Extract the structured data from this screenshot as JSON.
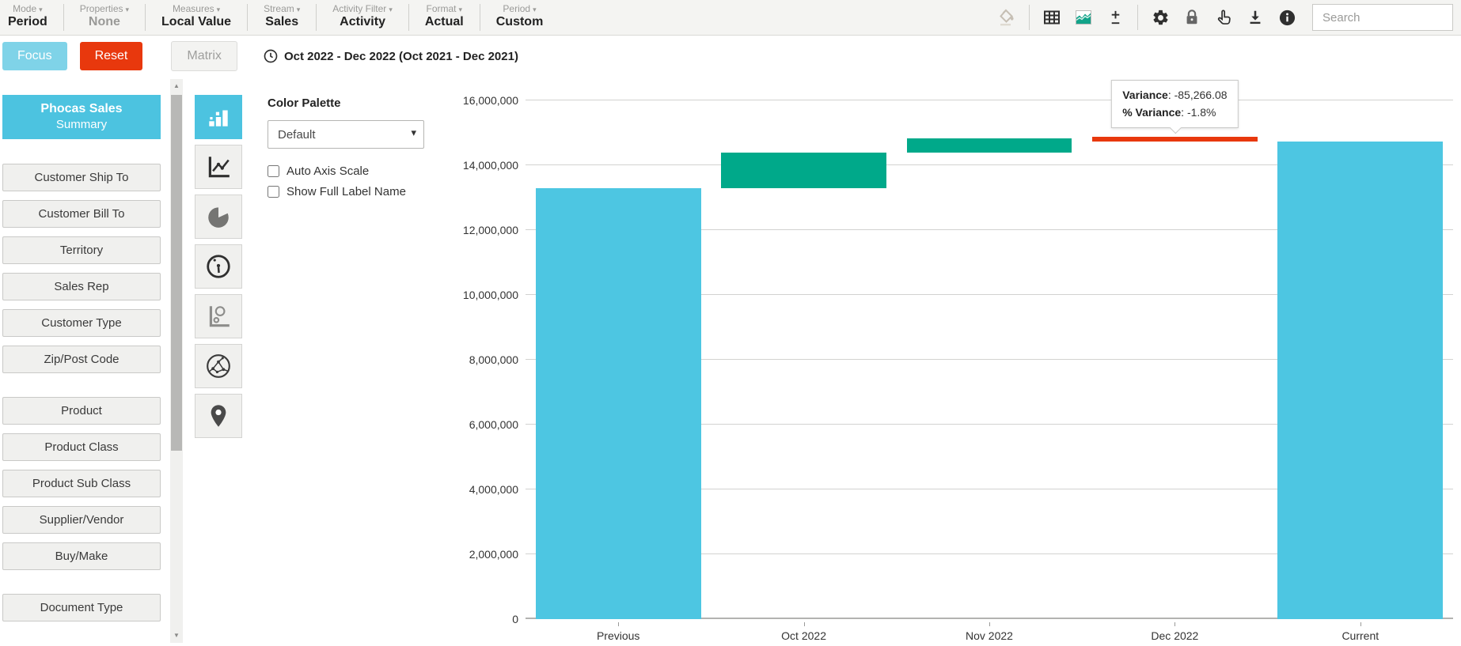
{
  "toolbar": {
    "menus": [
      {
        "label": "Mode",
        "value": "Period",
        "disabled": false
      },
      {
        "label": "Properties",
        "value": "None",
        "disabled": true
      },
      {
        "label": "Measures",
        "value": "Local Value",
        "disabled": false
      },
      {
        "label": "Stream",
        "value": "Sales",
        "disabled": false
      },
      {
        "label": "Activity Filter",
        "value": "Activity",
        "disabled": false
      },
      {
        "label": "Format",
        "value": "Actual",
        "disabled": false
      },
      {
        "label": "Period",
        "value": "Custom",
        "disabled": false
      }
    ],
    "icon_groups": [
      [
        "fill-bucket"
      ],
      [
        "table",
        "area-chart",
        "plus-minus"
      ],
      [
        "gear",
        "lock",
        "hand-pointer",
        "download",
        "info"
      ]
    ],
    "search_placeholder": "Search"
  },
  "actionbar": {
    "focus_label": "Focus",
    "reset_label": "Reset",
    "matrix_label": "Matrix",
    "period_text": "Oct 2022 - Dec 2022 (Oct 2021 - Dec 2021)"
  },
  "sidebar": {
    "title_line1": "Phocas Sales",
    "title_line2": "Summary",
    "groups": [
      {
        "items": [
          "Customer Ship To",
          "Customer Bill To",
          "Territory",
          "Sales Rep",
          "Customer Type",
          "Zip/Post Code"
        ]
      },
      {
        "items": [
          "Product",
          "Product Class",
          "Product Sub Class",
          "Supplier/Vendor",
          "Buy/Make"
        ]
      },
      {
        "items": [
          "Document Type"
        ]
      }
    ]
  },
  "chart_panel": {
    "chart_types": [
      {
        "name": "column-chart",
        "selected": true
      },
      {
        "name": "line-chart",
        "selected": false
      },
      {
        "name": "pie-chart",
        "selected": false
      },
      {
        "name": "gauge",
        "selected": false
      },
      {
        "name": "bubble-chart",
        "selected": false
      },
      {
        "name": "network-chart",
        "selected": false
      },
      {
        "name": "map",
        "selected": false
      }
    ],
    "options": {
      "color_palette_label": "Color Palette",
      "color_palette_value": "Default",
      "checkboxes": [
        {
          "label": "Auto Axis Scale",
          "checked": false
        },
        {
          "label": "Show Full Label Name",
          "checked": false
        }
      ]
    }
  },
  "tooltip": {
    "line1_label": "Variance",
    "line1_value": "-85,266.08",
    "line2_label": "% Variance",
    "line2_value": "-1.8%"
  },
  "chart_data": {
    "type": "bar",
    "subtype": "waterfall",
    "categories": [
      "Previous",
      "Oct 2022",
      "Nov 2022",
      "Dec 2022",
      "Current"
    ],
    "bars": [
      {
        "label": "Previous",
        "from": 0,
        "to": 13300000,
        "kind": "total"
      },
      {
        "label": "Oct 2022",
        "from": 13300000,
        "to": 14400000,
        "kind": "increase"
      },
      {
        "label": "Nov 2022",
        "from": 14400000,
        "to": 14820000,
        "kind": "increase"
      },
      {
        "label": "Dec 2022",
        "from": 14820000,
        "to": 14734733.92,
        "kind": "decrease",
        "variance": -85266.08,
        "variance_pct": -1.8
      },
      {
        "label": "Current",
        "from": 0,
        "to": 14734733.92,
        "kind": "total"
      }
    ],
    "ylim": [
      0,
      16000000
    ],
    "ytick_step": 2000000,
    "grid": true,
    "legend": "none",
    "tooltip_bar_index": 3,
    "colors": {
      "total": "#4dc6e2",
      "increase": "#00a98a",
      "decrease": "#e8380d"
    }
  },
  "theme": {
    "accent_cyan": "#4cc3e0",
    "accent_green": "#00a98a",
    "accent_red": "#e8380d",
    "focus_button": "#7fd3e8",
    "reset_button": "#e8380d"
  }
}
